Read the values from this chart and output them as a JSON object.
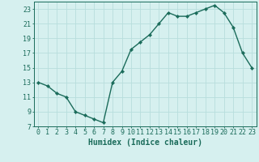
{
  "x": [
    0,
    1,
    2,
    3,
    4,
    5,
    6,
    7,
    8,
    9,
    10,
    11,
    12,
    13,
    14,
    15,
    16,
    17,
    18,
    19,
    20,
    21,
    22,
    23
  ],
  "y": [
    13,
    12.5,
    11.5,
    11,
    9,
    8.5,
    8,
    7.5,
    13,
    14.5,
    17.5,
    18.5,
    19.5,
    21,
    22.5,
    22,
    22,
    22.5,
    23,
    23.5,
    22.5,
    20.5,
    17,
    15
  ],
  "line_color": "#1a6b5a",
  "marker": "D",
  "marker_size": 2.2,
  "bg_color": "#d6f0ef",
  "grid_color": "#b8dedd",
  "xlabel": "Humidex (Indice chaleur)",
  "xlim": [
    -0.5,
    23.5
  ],
  "ylim": [
    7,
    24
  ],
  "yticks": [
    7,
    9,
    11,
    13,
    15,
    17,
    19,
    21,
    23
  ],
  "xticks": [
    0,
    1,
    2,
    3,
    4,
    5,
    6,
    7,
    8,
    9,
    10,
    11,
    12,
    13,
    14,
    15,
    16,
    17,
    18,
    19,
    20,
    21,
    22,
    23
  ],
  "tick_color": "#1a6b5a",
  "xlabel_fontsize": 7,
  "tick_fontsize": 6,
  "line_width": 1.0
}
